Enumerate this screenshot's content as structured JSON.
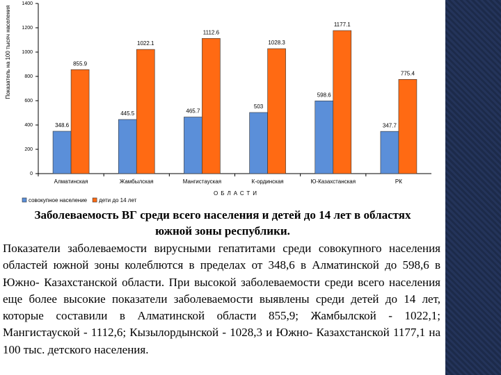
{
  "chart_data": {
    "type": "bar",
    "y_label": "Показатель на 100 тысяч населения",
    "x_label": "ОБЛАСТИ",
    "categories": [
      "Алматинская",
      "Жамбылская",
      "Мангистауская",
      "К-ординская",
      "Ю-Казахстанская",
      "РК"
    ],
    "series": [
      {
        "name": "совокупное население",
        "color": "#5b8fd9",
        "values": [
          348.6,
          445.5,
          465.7,
          503,
          598.6,
          347.7
        ]
      },
      {
        "name": "дети до 14 лет",
        "color": "#ff6a13",
        "values": [
          855.9,
          1022.1,
          1112.6,
          1028.3,
          1177.1,
          775.4
        ]
      }
    ],
    "ylim": [
      0,
      1400
    ],
    "yticks": [
      0,
      200,
      400,
      600,
      800,
      1000,
      1200,
      1400
    ],
    "grid": false
  },
  "caption": "Заболеваемость ВГ среди всего населения и детей до 14 лет в областях южной зоны республики.",
  "paragraph": "Показатели заболеваемости вирусными гепатитами среди совокупного населения областей южной зоны колеблются в пределах от 348,6 в Алматинской до 598,6 в Южно- Казахстанской области. При высокой заболеваемости среди всего населения еще более высокие показатели заболеваемости выявлены среди детей до 14 лет, которые составили в Алматинской области 855,9; Жамбылской - 1022,1; Мангистауской - 1112,6; Кызылордынской - 1028,3 и Южно- Казахстанской 1177,1 на 100 тыс. детского населения."
}
